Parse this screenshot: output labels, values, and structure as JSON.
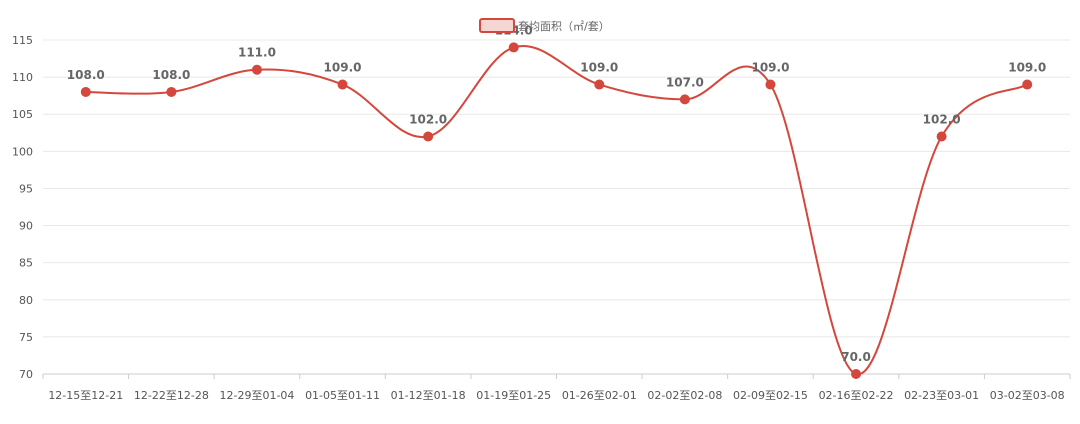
{
  "chart_data": {
    "type": "line",
    "title": "",
    "xlabel": "",
    "ylabel": "",
    "categories": [
      "12-15至12-21",
      "12-22至12-28",
      "12-29至01-04",
      "01-05至01-11",
      "01-12至01-18",
      "01-19至01-25",
      "01-26至02-01",
      "02-02至02-08",
      "02-09至02-15",
      "02-16至02-22",
      "02-23至03-01",
      "03-02至03-08"
    ],
    "series": [
      {
        "name": "套均面积（㎡/套）",
        "values": [
          108.0,
          108.0,
          111.0,
          109.0,
          102.0,
          114.0,
          109.0,
          107.0,
          109.0,
          70.0,
          102.0,
          109.0
        ],
        "labels": [
          "108.0",
          "108.0",
          "111.0",
          "109.0",
          "102.0",
          "114.0",
          "109.0",
          "107.0",
          "109.0",
          "70.0",
          "102.0",
          "109.0"
        ],
        "color": "#d4473d"
      }
    ],
    "ylim": [
      70,
      115
    ],
    "yticks": [
      "115",
      "110",
      "105",
      "100",
      "95",
      "90",
      "85",
      "80",
      "75",
      "70"
    ],
    "grid": true,
    "legend": "top-center",
    "curve": "smooth"
  }
}
